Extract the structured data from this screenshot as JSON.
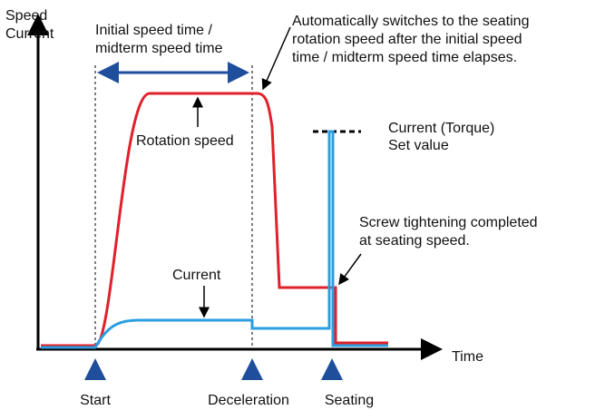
{
  "axes": {
    "y_label": [
      "Speed",
      "Current"
    ],
    "x_label": "Time"
  },
  "annotations": {
    "initial_time": [
      "Initial speed time /",
      "midterm speed time"
    ],
    "auto_switch": [
      "Automatically switches to the seating",
      "rotation speed after the initial speed",
      "time / midterm speed time elapses."
    ],
    "rotation_speed": "Rotation speed",
    "current_set": [
      "Current (Torque)",
      "Set value"
    ],
    "screw": [
      "Screw tightening completed",
      "at seating speed."
    ],
    "current": "Current"
  },
  "events": [
    "Start",
    "Deceleration",
    "Seating"
  ]
}
